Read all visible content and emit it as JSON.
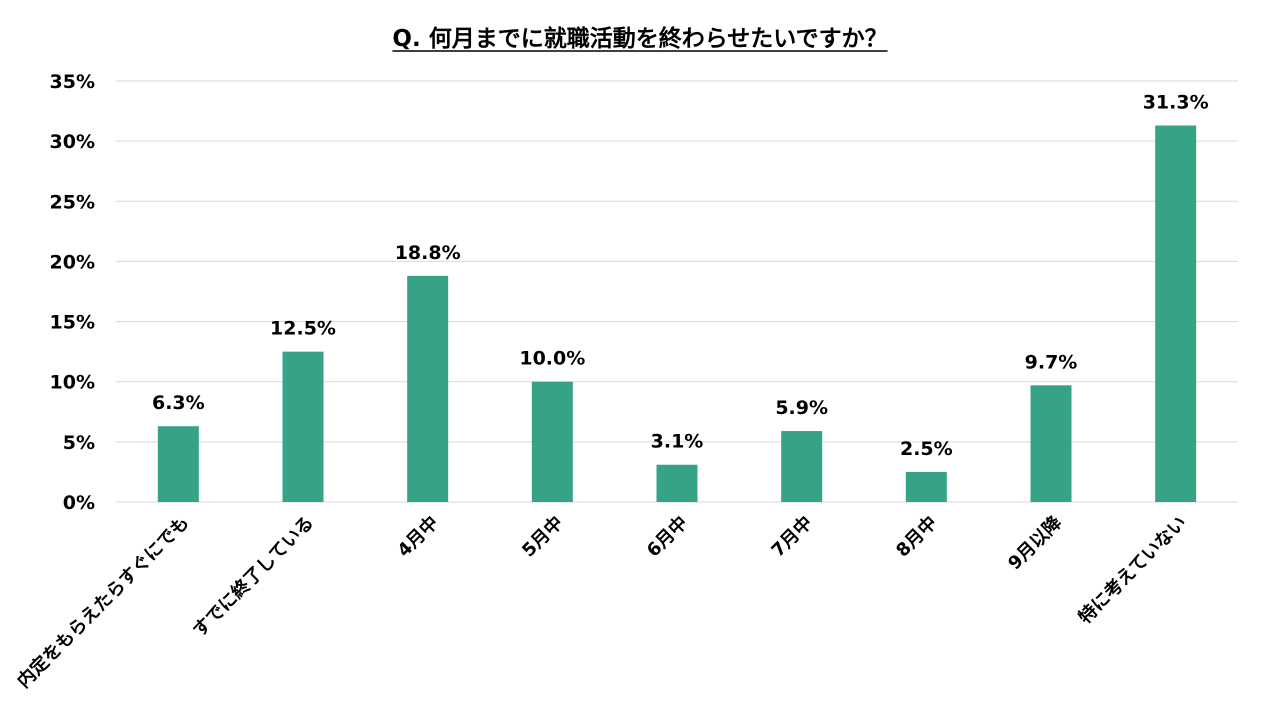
{
  "chart_data": {
    "type": "bar",
    "title": "Q. 何月までに就職活動を終わらせたいですか？",
    "xlabel": "",
    "ylabel": "",
    "categories": [
      "内定をもらえたらすぐにでも",
      "すでに終了している",
      "4月中",
      "5月中",
      "6月中",
      "7月中",
      "8月中",
      "9月以降",
      "特に考えていない"
    ],
    "values": [
      6.3,
      12.5,
      18.8,
      10.0,
      3.1,
      5.9,
      2.5,
      9.7,
      31.3
    ],
    "value_labels": [
      "6.3%",
      "12.5%",
      "18.8%",
      "10.0%",
      "3.1%",
      "5.9%",
      "2.5%",
      "9.7%",
      "31.3%"
    ],
    "ylim": [
      0,
      35
    ],
    "yticks": [
      0,
      5,
      10,
      15,
      20,
      25,
      30,
      35
    ],
    "ytick_labels": [
      "0%",
      "5%",
      "10%",
      "15%",
      "20%",
      "25%",
      "30%",
      "35%"
    ],
    "grid": true,
    "legend": "none",
    "bar_color": "#36a386"
  }
}
